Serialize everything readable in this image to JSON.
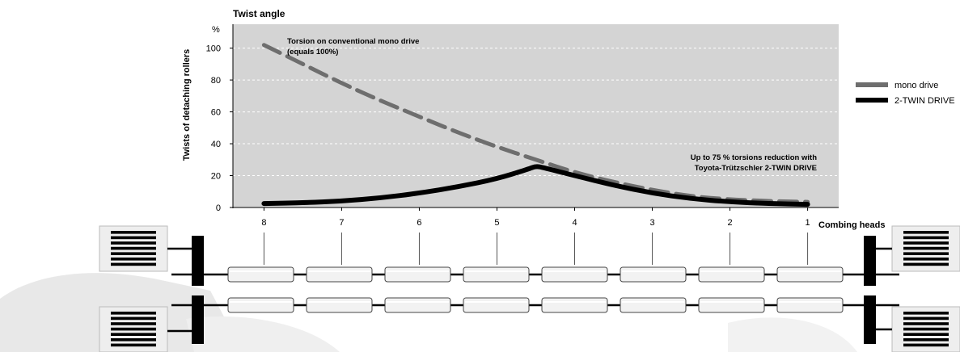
{
  "chart_data": {
    "type": "line",
    "title": "Twist angle",
    "ylabel": "Twists of detaching rollers",
    "yunit": "%",
    "xlabel": "Combing heads",
    "x_ticks": [
      "8",
      "7",
      "6",
      "5",
      "4",
      "3",
      "2",
      "1"
    ],
    "xlim": [
      8.4,
      0.6
    ],
    "ylim": [
      0,
      115
    ],
    "y_ticks": [
      0,
      20,
      40,
      60,
      80,
      100
    ],
    "grid": "horizontal-dashed",
    "legend_position": "right",
    "series": [
      {
        "name": "mono drive",
        "style": "dashed",
        "color": "#6e6e6e",
        "points": [
          [
            8,
            102
          ],
          [
            7.5,
            90
          ],
          [
            7,
            78
          ],
          [
            6.5,
            67
          ],
          [
            6,
            57
          ],
          [
            5.5,
            47
          ],
          [
            5,
            38
          ],
          [
            4.5,
            30
          ],
          [
            4,
            22
          ],
          [
            3.5,
            16
          ],
          [
            3,
            11
          ],
          [
            2.5,
            7
          ],
          [
            2,
            5
          ],
          [
            1.5,
            4
          ],
          [
            1,
            3.5
          ]
        ]
      },
      {
        "name": "2-TWIN DRIVE",
        "style": "solid",
        "color": "#000000",
        "points": [
          [
            8,
            2.5
          ],
          [
            7.5,
            3
          ],
          [
            7,
            4
          ],
          [
            6.5,
            6
          ],
          [
            6,
            9
          ],
          [
            5.5,
            13
          ],
          [
            5,
            18
          ],
          [
            4.6,
            24
          ],
          [
            4.5,
            26
          ],
          [
            4.4,
            25
          ],
          [
            4,
            20
          ],
          [
            3.5,
            14
          ],
          [
            3,
            9
          ],
          [
            2.5,
            5.5
          ],
          [
            2,
            3.5
          ],
          [
            1.5,
            2.5
          ],
          [
            1,
            2
          ]
        ]
      }
    ],
    "annotations": [
      {
        "line1": "Torsion on conventional mono drive",
        "line2": "(equals 100%)"
      },
      {
        "line1": "Up to 75 % torsions reduction with",
        "line2": "Toyota-Trützschler 2-TWIN DRIVE"
      }
    ]
  },
  "diagram": {
    "rows": 2,
    "rollers_per_row": 8
  }
}
